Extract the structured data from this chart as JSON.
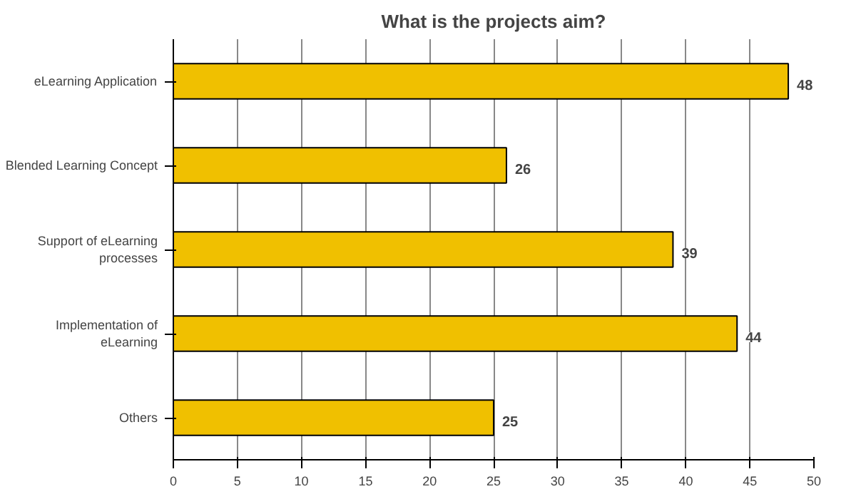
{
  "chart_data": {
    "type": "bar",
    "orientation": "horizontal",
    "title": "What is the projects aim?",
    "categories": [
      "eLearning Application",
      "Blended Learning Concept",
      "Support of eLearning\nprocesses",
      "Implementation of\neLearning",
      "Others"
    ],
    "values": [
      48,
      26,
      39,
      44,
      25
    ],
    "color": "#f0c000",
    "xlim": [
      0,
      50
    ],
    "xticks": [
      0,
      5,
      10,
      15,
      20,
      25,
      30,
      35,
      40,
      45,
      50
    ],
    "grid": "x",
    "data_labels": true
  }
}
